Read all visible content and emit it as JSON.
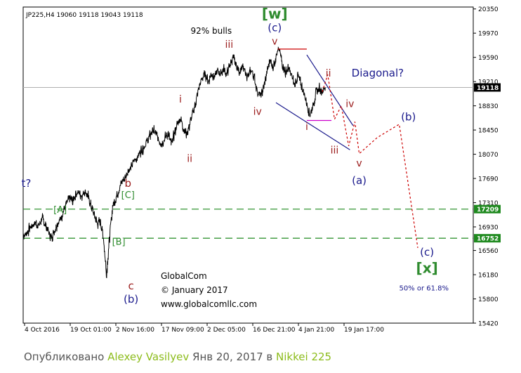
{
  "chart_data": {
    "type": "candlestick",
    "symbol_header": "JP225,H4  19060 19118 19043 19118",
    "price_axis": {
      "ylim": [
        15420,
        20380
      ],
      "ticks": [
        "20350",
        "19970",
        "19590",
        "19210",
        "18830",
        "18450",
        "18070",
        "17690",
        "17310",
        "16930",
        "16560",
        "16180",
        "15800",
        "15420"
      ]
    },
    "time_axis": {
      "ticks": [
        "4 Oct 2016",
        "19 Oct 01:00",
        "2 Nov 16:00",
        "17 Nov 09:00",
        "2 Dec 05:00",
        "16 Dec 21:00",
        "4 Jan 21:00",
        "19 Jan 17:00"
      ]
    },
    "current_price": {
      "value": 19118,
      "label": "19118"
    },
    "levels": [
      {
        "value": 17209,
        "label": "17209",
        "style": "dashed",
        "color": "#1f8a1f"
      },
      {
        "value": 16752,
        "label": "16752",
        "style": "dashed",
        "color": "#1f8a1f"
      }
    ],
    "price_path": [
      [
        0,
        16800
      ],
      [
        0.5,
        16830
      ],
      [
        1,
        16900
      ],
      [
        1.5,
        16960
      ],
      [
        2,
        17000
      ],
      [
        2.5,
        16940
      ],
      [
        3,
        17060
      ],
      [
        3.5,
        16980
      ],
      [
        4,
        16880
      ],
      [
        4.5,
        16760
      ],
      [
        5,
        16860
      ],
      [
        5.5,
        16980
      ],
      [
        6,
        17050
      ],
      [
        6.5,
        17180
      ],
      [
        7,
        17290
      ],
      [
        7.5,
        17380
      ],
      [
        8,
        17330
      ],
      [
        8.5,
        17450
      ],
      [
        9,
        17470
      ],
      [
        9.5,
        17420
      ],
      [
        10,
        17500
      ],
      [
        10.5,
        17400
      ],
      [
        11,
        17260
      ],
      [
        11.5,
        17120
      ],
      [
        12,
        16980
      ],
      [
        12.5,
        17020
      ],
      [
        13,
        16760
      ],
      [
        13.5,
        16180
      ],
      [
        14,
        16780
      ],
      [
        14.5,
        17260
      ],
      [
        15,
        17380
      ],
      [
        15.5,
        17520
      ],
      [
        16,
        17640
      ],
      [
        16.5,
        17700
      ],
      [
        17,
        17820
      ],
      [
        17.5,
        17860
      ],
      [
        18,
        17980
      ],
      [
        18.5,
        18020
      ],
      [
        19,
        18120
      ],
      [
        19.5,
        18180
      ],
      [
        20,
        18260
      ],
      [
        20.5,
        18350
      ],
      [
        21,
        18450
      ],
      [
        21.5,
        18390
      ],
      [
        22,
        18280
      ],
      [
        22.5,
        18250
      ],
      [
        23,
        18330
      ],
      [
        23.5,
        18400
      ],
      [
        24,
        18220
      ],
      [
        24.5,
        18390
      ],
      [
        25,
        18550
      ],
      [
        25.5,
        18640
      ],
      [
        26,
        18470
      ],
      [
        26.5,
        18380
      ],
      [
        27,
        18540
      ],
      [
        27.5,
        18720
      ],
      [
        28,
        18900
      ],
      [
        28.5,
        19120
      ],
      [
        29,
        19260
      ],
      [
        29.5,
        19330
      ],
      [
        30,
        19210
      ],
      [
        30.5,
        19340
      ],
      [
        31,
        19280
      ],
      [
        31.5,
        19380
      ],
      [
        32,
        19340
      ],
      [
        32.5,
        19410
      ],
      [
        33,
        19320
      ],
      [
        33.5,
        19470
      ],
      [
        34,
        19590
      ],
      [
        34.5,
        19460
      ],
      [
        35,
        19380
      ],
      [
        35.5,
        19430
      ],
      [
        36,
        19350
      ],
      [
        36.5,
        19290
      ],
      [
        37,
        19390
      ],
      [
        37.5,
        19260
      ],
      [
        38,
        19040
      ],
      [
        38.5,
        18980
      ],
      [
        39,
        19120
      ],
      [
        39.5,
        19340
      ],
      [
        40,
        19560
      ],
      [
        40.5,
        19440
      ],
      [
        41,
        19620
      ],
      [
        41.5,
        19710
      ],
      [
        42,
        19500
      ],
      [
        42.5,
        19350
      ],
      [
        43,
        19420
      ],
      [
        43.5,
        19300
      ],
      [
        44,
        19150
      ],
      [
        44.5,
        19300
      ],
      [
        45,
        19180
      ],
      [
        45.5,
        19040
      ],
      [
        46,
        18860
      ],
      [
        46.5,
        18690
      ],
      [
        47,
        18840
      ],
      [
        47.5,
        19040
      ],
      [
        48,
        19100
      ],
      [
        48.5,
        19060
      ],
      [
        49,
        19118
      ]
    ],
    "time_span": [
      0,
      73
    ],
    "title_annotation": "92% bulls",
    "copyright_lines": [
      "GlobalCom",
      "© January 2017",
      "www.globalcomllc.com"
    ],
    "wave_labels": [
      {
        "text": "[w]",
        "t": 40.8,
        "p": 20200,
        "color": "#2e8b2e",
        "size": 20
      },
      {
        "text": "(c)",
        "t": 40.8,
        "p": 20000,
        "color": "#1a1a8c",
        "size": 15
      },
      {
        "text": "v",
        "t": 40.8,
        "p": 19790,
        "color": "#9b1c1c",
        "size": 14
      },
      {
        "text": "iii",
        "t": 33.4,
        "p": 19740,
        "color": "#9b1c1c",
        "size": 14
      },
      {
        "text": "iv",
        "t": 38.0,
        "p": 18690,
        "color": "#9b1c1c",
        "size": 14
      },
      {
        "text": "i",
        "t": 25.5,
        "p": 18880,
        "color": "#9b1c1c",
        "size": 14
      },
      {
        "text": "ii",
        "t": 27.0,
        "p": 17950,
        "color": "#9b1c1c",
        "size": 14
      },
      {
        "text": "b",
        "t": 17.0,
        "p": 17560,
        "color": "#9b1c1c",
        "size": 15
      },
      {
        "text": "[C]",
        "t": 17.0,
        "p": 17380,
        "color": "#2e8b2e",
        "size": 13
      },
      {
        "text": "[B]",
        "t": 15.5,
        "p": 16650,
        "color": "#2e8b2e",
        "size": 13
      },
      {
        "text": "[A]",
        "t": 6.0,
        "p": 17150,
        "color": "#2e8b2e",
        "size": 13
      },
      {
        "text": "c",
        "t": 17.5,
        "p": 15950,
        "color": "#9b1c1c",
        "size": 15
      },
      {
        "text": "(b)",
        "t": 17.5,
        "p": 15740,
        "color": "#1a1a8c",
        "size": 15
      },
      {
        "text": "t?",
        "t": 0.5,
        "p": 17560,
        "color": "#1a1a8c",
        "size": 15
      },
      {
        "text": "i",
        "t": 46.0,
        "p": 18450,
        "color": "#9b1c1c",
        "size": 14
      },
      {
        "text": "ii",
        "t": 49.5,
        "p": 19290,
        "color": "#9b1c1c",
        "size": 14
      },
      {
        "text": "Diagonal?",
        "t": 57.5,
        "p": 19290,
        "color": "#1a1a8c",
        "size": 15
      },
      {
        "text": "iii",
        "t": 50.5,
        "p": 18080,
        "color": "#9b1c1c",
        "size": 14
      },
      {
        "text": "iv",
        "t": 53.0,
        "p": 18810,
        "color": "#9b1c1c",
        "size": 14
      },
      {
        "text": "v",
        "t": 54.5,
        "p": 17880,
        "color": "#9b1c1c",
        "size": 14
      },
      {
        "text": "(a)",
        "t": 54.5,
        "p": 17600,
        "color": "#1a1a8c",
        "size": 15
      },
      {
        "text": "(b)",
        "t": 62.5,
        "p": 18600,
        "color": "#1a1a8c",
        "size": 15
      },
      {
        "text": "(c)",
        "t": 65.5,
        "p": 16480,
        "color": "#1a1a8c",
        "size": 15
      },
      {
        "text": "[x]",
        "t": 65.5,
        "p": 16210,
        "color": "#2e8b2e",
        "size": 20
      },
      {
        "text": "50% or 61.8%",
        "t": 65.0,
        "p": 15930,
        "color": "#1a1a8c",
        "size": 10
      }
    ],
    "structure_lines": [
      {
        "from": [
          41.3,
          19720
        ],
        "to": [
          46.0,
          19720
        ],
        "color": "#cc0000",
        "dash": ""
      },
      {
        "from": [
          46.0,
          18600
        ],
        "to": [
          50.0,
          18600
        ],
        "color": "#cc00cc",
        "dash": ""
      },
      {
        "from": [
          46.0,
          19630
        ],
        "to": [
          53.5,
          18520
        ],
        "color": "#1a1a8c",
        "dash": ""
      },
      {
        "from": [
          41.0,
          18880
        ],
        "to": [
          53.0,
          18140
        ],
        "color": "#1a1a8c",
        "dash": ""
      }
    ],
    "projection_path": {
      "color": "#cc0000",
      "dash": "3,3",
      "points": [
        [
          48.5,
          19050
        ],
        [
          49.4,
          19320
        ],
        [
          50.5,
          18620
        ],
        [
          51.6,
          18830
        ],
        [
          52.8,
          18200
        ],
        [
          53.8,
          18580
        ],
        [
          54.5,
          18080
        ],
        [
          57.4,
          18330
        ],
        [
          61.0,
          18540
        ],
        [
          64.0,
          16600
        ]
      ]
    }
  },
  "footer": {
    "prefix": "Опубликовано",
    "author": "Alexey Vasilyev",
    "date": "Янв 20, 2017 в",
    "instrument": "Nikkei 225"
  }
}
